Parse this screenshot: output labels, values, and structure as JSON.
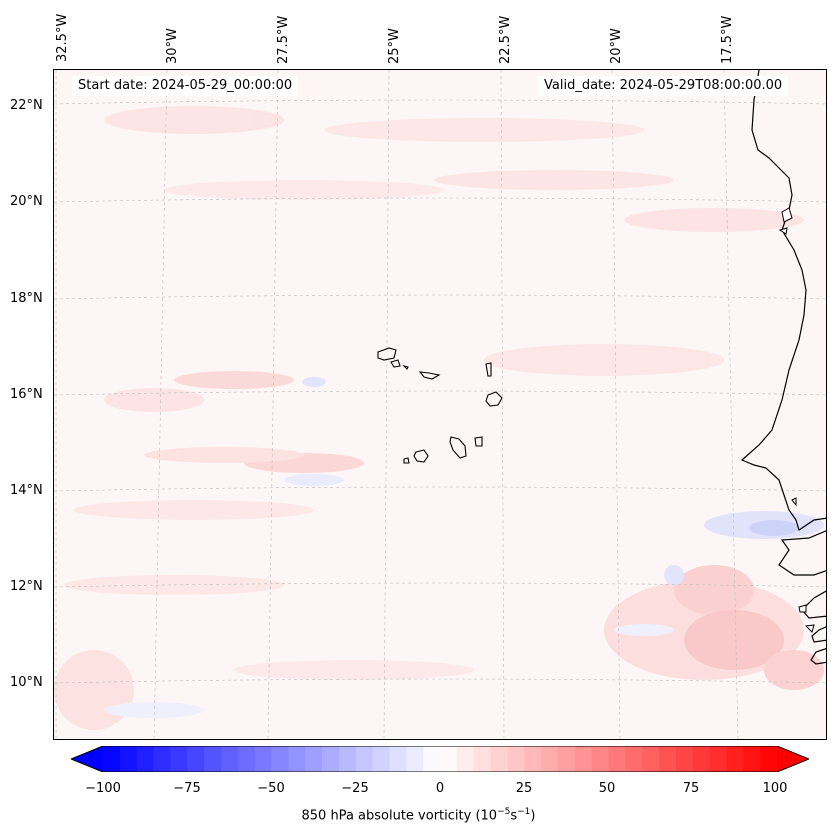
{
  "map": {
    "start_date": "Start date: 2024-05-29_00:00:00",
    "valid_date": "Valid_date: 2024-05-29T08:00:00.00",
    "longitude_labels": [
      "32.5°W",
      "30°W",
      "27.5°W",
      "25°W",
      "22.5°W",
      "20°W",
      "17.5°W"
    ],
    "latitude_labels": [
      "22°N",
      "20°N",
      "18°N",
      "16°N",
      "14°N",
      "12°N",
      "10°N"
    ],
    "grid": true,
    "colors": {
      "negative": "#0000ff",
      "neutral": "#ffffff",
      "positive": "#ff0000",
      "coastline": "#000000"
    }
  },
  "colorbar": {
    "ticks": [
      "−100",
      "−75",
      "−50",
      "−25",
      "0",
      "25",
      "50",
      "75",
      "100"
    ],
    "range": [
      -100,
      100
    ],
    "label": "850 hPa absolute vorticity (10",
    "label_exp1": "−5",
    "label_mid": "s",
    "label_exp2": "−1",
    "label_end": ")"
  }
}
